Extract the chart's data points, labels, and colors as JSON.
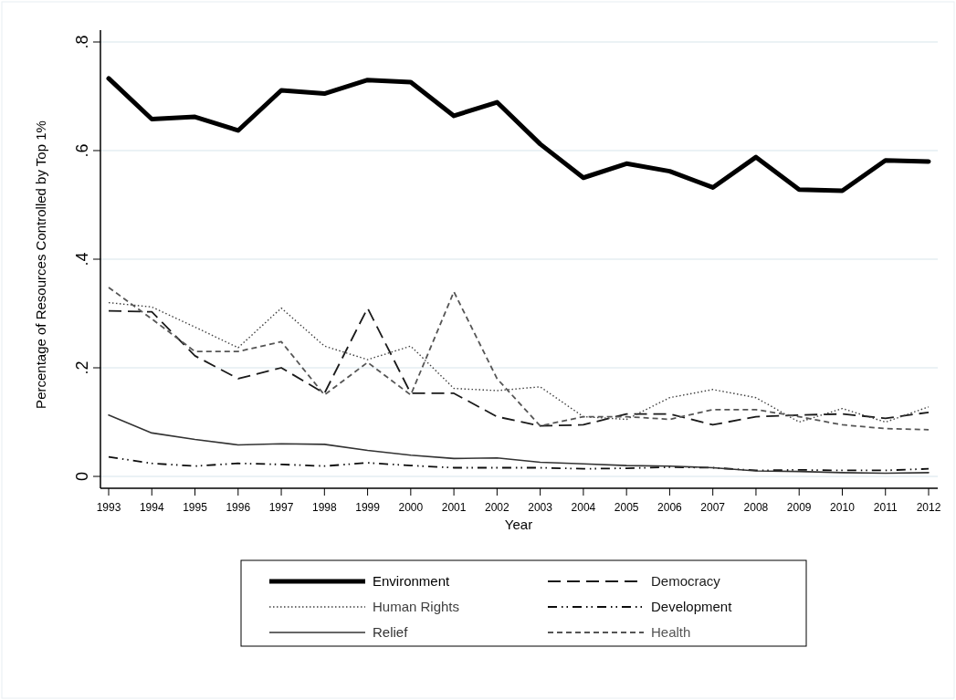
{
  "chart_data": {
    "type": "line",
    "xlabel": "Year",
    "ylabel": "Percentage of Resources Controlled by Top 1%",
    "categories": [
      "1993",
      "1994",
      "1995",
      "1996",
      "1997",
      "1998",
      "1999",
      "2000",
      "2001",
      "2002",
      "2003",
      "2004",
      "2005",
      "2006",
      "2007",
      "2008",
      "2009",
      "2010",
      "2011",
      "2012"
    ],
    "ylim": [
      0,
      0.8
    ],
    "yticks": [
      {
        "value": 0,
        "label": "0"
      },
      {
        "value": 0.2,
        "label": ".2"
      },
      {
        "value": 0.4,
        "label": ".4"
      },
      {
        "value": 0.6,
        "label": ".6"
      },
      {
        "value": 0.8,
        "label": ".8"
      }
    ],
    "grid": "y",
    "legend": "bottom",
    "series": [
      {
        "name": "Environment",
        "color": "#000000",
        "line_style": "solid",
        "values": [
          0.733,
          0.658,
          0.662,
          0.637,
          0.711,
          0.705,
          0.73,
          0.726,
          0.664,
          0.689,
          0.612,
          0.55,
          0.576,
          0.562,
          0.532,
          0.588,
          0.528,
          0.526,
          0.582,
          0.58
        ]
      },
      {
        "name": "Democracy",
        "color": "#1a1a1a",
        "line_style": "dashed",
        "values": [
          0.305,
          0.303,
          0.222,
          0.18,
          0.2,
          0.153,
          0.31,
          0.153,
          0.153,
          0.11,
          0.093,
          0.095,
          0.115,
          0.115,
          0.095,
          0.11,
          0.113,
          0.115,
          0.107,
          0.118
        ]
      },
      {
        "name": "Human Rights",
        "color": "#404040",
        "line_style": "dotted",
        "values": [
          0.32,
          0.312,
          0.275,
          0.237,
          0.31,
          0.24,
          0.215,
          0.24,
          0.162,
          0.158,
          0.165,
          0.11,
          0.105,
          0.145,
          0.16,
          0.145,
          0.1,
          0.125,
          0.1,
          0.128
        ]
      },
      {
        "name": "Development",
        "color": "#0d0d0d",
        "line_style": "dashdot",
        "values": [
          0.036,
          0.024,
          0.019,
          0.024,
          0.022,
          0.019,
          0.025,
          0.02,
          0.016,
          0.016,
          0.016,
          0.014,
          0.015,
          0.017,
          0.016,
          0.011,
          0.012,
          0.011,
          0.011,
          0.014
        ]
      },
      {
        "name": "Relief",
        "color": "#333333",
        "line_style": "solid",
        "values": [
          0.113,
          0.08,
          0.068,
          0.058,
          0.06,
          0.059,
          0.048,
          0.039,
          0.033,
          0.034,
          0.026,
          0.023,
          0.02,
          0.019,
          0.016,
          0.01,
          0.009,
          0.007,
          0.006,
          0.007
        ]
      },
      {
        "name": "Health",
        "color": "#555555",
        "line_style": "dashed",
        "values": [
          0.348,
          0.29,
          0.23,
          0.23,
          0.248,
          0.15,
          0.21,
          0.15,
          0.34,
          0.18,
          0.093,
          0.11,
          0.11,
          0.105,
          0.123,
          0.123,
          0.11,
          0.095,
          0.088,
          0.086
        ]
      }
    ]
  }
}
